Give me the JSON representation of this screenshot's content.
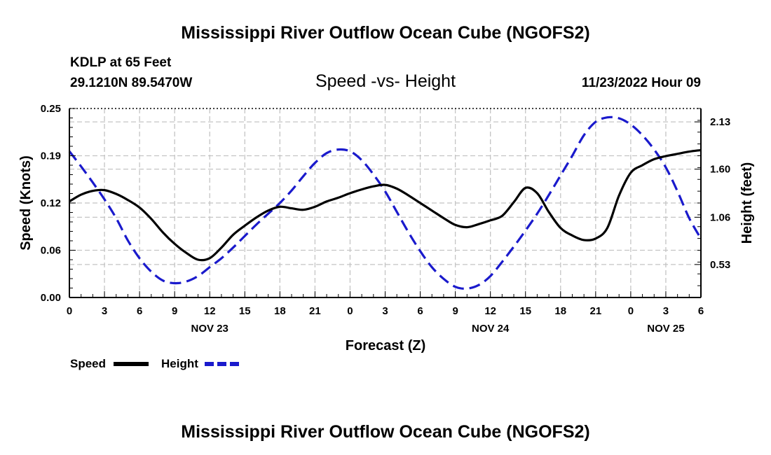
{
  "page": {
    "title": "Mississippi River Outflow Ocean Cube (NGOFS2)",
    "footer_title": "Mississippi River Outflow Ocean Cube (NGOFS2)",
    "station": "KDLP at 65 Feet",
    "location": "29.1210N  89.5470W",
    "plot_subtitle": "Speed -vs- Height",
    "run_time": "11/23/2022 Hour 09"
  },
  "chart_data": {
    "type": "line",
    "title": "Speed -vs- Height",
    "xlabel": "Forecast (Z)",
    "ylabel": "Speed (Knots)",
    "y2label": "Height (feet)",
    "x_unit": "hours since NOV 23 00Z",
    "xlim": [
      0,
      54
    ],
    "ylim": [
      0,
      0.25
    ],
    "y2lim": [
      0.16,
      2.28
    ],
    "grid": true,
    "x_ticks": [
      {
        "x": 0,
        "label": "0"
      },
      {
        "x": 3,
        "label": "3"
      },
      {
        "x": 6,
        "label": "6"
      },
      {
        "x": 9,
        "label": "9"
      },
      {
        "x": 12,
        "label": "12"
      },
      {
        "x": 15,
        "label": "15"
      },
      {
        "x": 18,
        "label": "18"
      },
      {
        "x": 21,
        "label": "21"
      },
      {
        "x": 24,
        "label": "0"
      },
      {
        "x": 27,
        "label": "3"
      },
      {
        "x": 30,
        "label": "6"
      },
      {
        "x": 33,
        "label": "9"
      },
      {
        "x": 36,
        "label": "12"
      },
      {
        "x": 39,
        "label": "15"
      },
      {
        "x": 42,
        "label": "18"
      },
      {
        "x": 45,
        "label": "21"
      },
      {
        "x": 48,
        "label": "0"
      },
      {
        "x": 51,
        "label": "3"
      },
      {
        "x": 54,
        "label": "6"
      }
    ],
    "date_labels": [
      {
        "x": 12,
        "label": "NOV 23"
      },
      {
        "x": 36,
        "label": "NOV 24"
      },
      {
        "x": 51,
        "label": "NOV 25"
      }
    ],
    "y_ticks": [
      {
        "value": 0.0,
        "label": "0.00"
      },
      {
        "value": 0.0625,
        "label": "0.06"
      },
      {
        "value": 0.125,
        "label": "0.12"
      },
      {
        "value": 0.1875,
        "label": "0.19"
      },
      {
        "value": 0.25,
        "label": "0.25"
      }
    ],
    "y2_ticks": [
      {
        "value": 0.53,
        "label": "0.53"
      },
      {
        "value": 1.06,
        "label": "1.06"
      },
      {
        "value": 1.6,
        "label": "1.60"
      },
      {
        "value": 2.13,
        "label": "2.13"
      }
    ],
    "series": [
      {
        "name": "Speed",
        "axis": "left",
        "color": "#000000",
        "dash": "solid",
        "x": [
          0,
          1,
          2,
          3,
          4,
          5,
          6,
          7,
          8,
          9,
          10,
          11,
          12,
          13,
          14,
          15,
          16,
          17,
          18,
          19,
          20,
          21,
          22,
          23,
          24,
          25,
          26,
          27,
          28,
          29,
          30,
          31,
          32,
          33,
          34,
          35,
          36,
          37,
          38,
          39,
          40,
          41,
          42,
          43,
          44,
          45,
          46,
          47,
          48,
          49,
          50,
          51,
          52,
          53,
          54
        ],
        "values": [
          0.127,
          0.136,
          0.141,
          0.142,
          0.137,
          0.129,
          0.119,
          0.104,
          0.086,
          0.071,
          0.059,
          0.05,
          0.052,
          0.066,
          0.083,
          0.095,
          0.106,
          0.115,
          0.12,
          0.118,
          0.116,
          0.12,
          0.127,
          0.132,
          0.138,
          0.143,
          0.147,
          0.149,
          0.144,
          0.135,
          0.125,
          0.115,
          0.105,
          0.096,
          0.093,
          0.097,
          0.102,
          0.108,
          0.126,
          0.145,
          0.138,
          0.113,
          0.092,
          0.082,
          0.076,
          0.078,
          0.092,
          0.135,
          0.165,
          0.175,
          0.183,
          0.187,
          0.19,
          0.193,
          0.195
        ]
      },
      {
        "name": "Height",
        "axis": "right",
        "color": "#1a1acc",
        "dash": "dashed",
        "x": [
          0,
          1,
          2,
          3,
          4,
          5,
          6,
          7,
          8,
          9,
          10,
          11,
          12,
          13,
          14,
          15,
          16,
          17,
          18,
          19,
          20,
          21,
          22,
          23,
          24,
          25,
          26,
          27,
          28,
          29,
          30,
          31,
          32,
          33,
          34,
          35,
          36,
          37,
          38,
          39,
          40,
          41,
          42,
          43,
          44,
          45,
          46,
          47,
          48,
          49,
          50,
          51,
          52,
          53,
          54
        ],
        "values": [
          1.8,
          1.63,
          1.45,
          1.26,
          1.05,
          0.8,
          0.6,
          0.45,
          0.35,
          0.32,
          0.34,
          0.4,
          0.5,
          0.6,
          0.72,
          0.85,
          0.98,
          1.1,
          1.22,
          1.36,
          1.52,
          1.67,
          1.78,
          1.82,
          1.8,
          1.7,
          1.54,
          1.35,
          1.12,
          0.89,
          0.68,
          0.5,
          0.37,
          0.28,
          0.26,
          0.3,
          0.4,
          0.56,
          0.73,
          0.91,
          1.1,
          1.31,
          1.53,
          1.75,
          1.98,
          2.13,
          2.18,
          2.17,
          2.1,
          1.98,
          1.82,
          1.62,
          1.35,
          1.05,
          0.82
        ]
      }
    ],
    "legend": [
      {
        "label": "Speed",
        "color": "#000000",
        "dash": "solid"
      },
      {
        "label": "Height",
        "color": "#1a1acc",
        "dash": "dashed"
      }
    ],
    "legend_position": "bottom-left"
  }
}
